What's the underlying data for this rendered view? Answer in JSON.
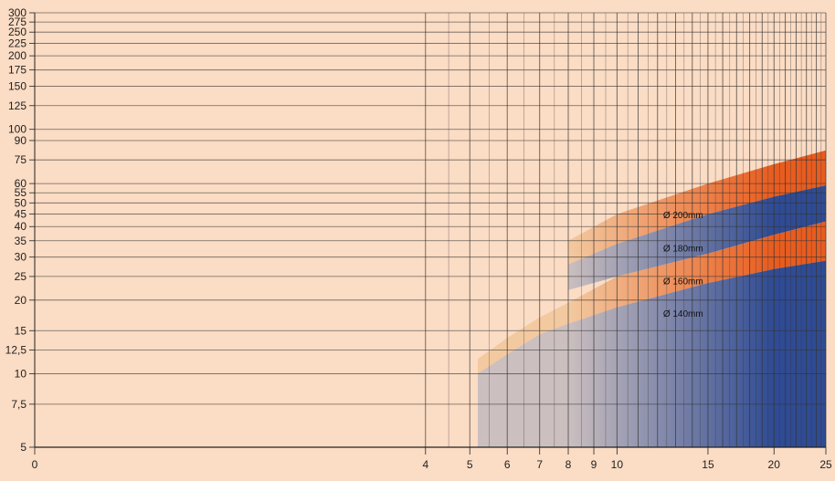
{
  "chart_data": {
    "type": "area",
    "title": "",
    "xlabel": "",
    "ylabel": "",
    "x_scale": "log1p",
    "y_scale": "log",
    "xlim": [
      0,
      25
    ],
    "ylim": [
      5,
      300
    ],
    "grid": true,
    "x_ticks": [
      {
        "value": 0,
        "label": "0"
      },
      {
        "value": 4,
        "label": "4"
      },
      {
        "value": 5,
        "label": "5"
      },
      {
        "value": 6,
        "label": "6"
      },
      {
        "value": 7,
        "label": "7"
      },
      {
        "value": 8,
        "label": "8"
      },
      {
        "value": 9,
        "label": "9"
      },
      {
        "value": 10,
        "label": "10"
      },
      {
        "value": 15,
        "label": "15"
      },
      {
        "value": 20,
        "label": "20"
      },
      {
        "value": 25,
        "label": "25"
      }
    ],
    "y_ticks": [
      {
        "value": 5,
        "label": "5"
      },
      {
        "value": 7.5,
        "label": "7,5"
      },
      {
        "value": 10,
        "label": "10"
      },
      {
        "value": 12.5,
        "label": "12,5"
      },
      {
        "value": 15,
        "label": "15"
      },
      {
        "value": 20,
        "label": "20"
      },
      {
        "value": 25,
        "label": "25"
      },
      {
        "value": 30,
        "label": "30"
      },
      {
        "value": 35,
        "label": "35"
      },
      {
        "value": 40,
        "label": "40"
      },
      {
        "value": 45,
        "label": "45"
      },
      {
        "value": 50,
        "label": "50"
      },
      {
        "value": 55,
        "label": "55"
      },
      {
        "value": 60,
        "label": "60"
      },
      {
        "value": 75,
        "label": "75"
      },
      {
        "value": 90,
        "label": "90"
      },
      {
        "value": 100,
        "label": "100"
      },
      {
        "value": 125,
        "label": "125"
      },
      {
        "value": 150,
        "label": "150"
      },
      {
        "value": 175,
        "label": "175"
      },
      {
        "value": 200,
        "label": "200"
      },
      {
        "value": 225,
        "label": "225"
      },
      {
        "value": 250,
        "label": "250"
      },
      {
        "value": 275,
        "label": "275"
      },
      {
        "value": 300,
        "label": "300"
      }
    ],
    "series": [
      {
        "name": "Ø 200mm",
        "color": "#e85c1f",
        "upper": [
          [
            8,
            35
          ],
          [
            10,
            45
          ],
          [
            15,
            60
          ],
          [
            20,
            72
          ],
          [
            25,
            82
          ]
        ],
        "lower": [
          [
            8,
            28
          ],
          [
            10,
            34
          ],
          [
            15,
            45
          ],
          [
            20,
            53
          ],
          [
            25,
            59
          ]
        ]
      },
      {
        "name": "Ø 180mm",
        "color": "#2f4b93",
        "upper": [
          [
            8,
            28
          ],
          [
            10,
            34
          ],
          [
            15,
            45
          ],
          [
            20,
            53
          ],
          [
            25,
            59
          ]
        ],
        "lower": [
          [
            8,
            22
          ],
          [
            10,
            25
          ],
          [
            15,
            31
          ],
          [
            20,
            37
          ],
          [
            25,
            42
          ]
        ]
      },
      {
        "name": "Ø 160mm",
        "color": "#e85c1f",
        "upper": [
          [
            5.2,
            11.5
          ],
          [
            6,
            14
          ],
          [
            7,
            17
          ],
          [
            8,
            19.5
          ],
          [
            10,
            25
          ],
          [
            15,
            31
          ],
          [
            20,
            37
          ],
          [
            25,
            42
          ]
        ],
        "lower": [
          [
            5.2,
            10
          ],
          [
            6,
            12
          ],
          [
            7,
            14.5
          ],
          [
            8,
            16
          ],
          [
            10,
            18.7
          ],
          [
            15,
            23.5
          ],
          [
            20,
            26.8
          ],
          [
            25,
            29
          ]
        ]
      },
      {
        "name": "Ø 140mm",
        "color": "#2f4b93",
        "upper": [
          [
            5.2,
            10
          ],
          [
            6,
            12
          ],
          [
            7,
            14.5
          ],
          [
            8,
            16
          ],
          [
            10,
            18.7
          ],
          [
            15,
            23.5
          ],
          [
            20,
            26.8
          ],
          [
            25,
            29
          ]
        ],
        "lower": [
          [
            5.2,
            5
          ],
          [
            25,
            5
          ]
        ]
      }
    ],
    "fill_fade": {
      "pale_until_x": 8,
      "full_from_x": 20,
      "pale_band_color": "#f3c9a0",
      "pale_blue_color": "#cbbfbf"
    },
    "colors": {
      "background": "#fbdcc4",
      "grid": "#333333"
    }
  }
}
